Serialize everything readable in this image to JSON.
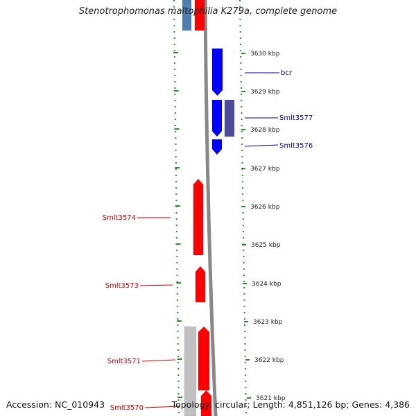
{
  "title": "Stenotrophomonas maltophilia K279a, complete genome",
  "footer": {
    "accession": "Accession: NC_010943",
    "topology": "Topology: circular; Length: 4,851,126 bp; Genes: 4,386"
  },
  "scale": {
    "ticks": [
      "3630 kbp",
      "3629 kbp",
      "3628 kbp",
      "3627 kbp",
      "3626 kbp",
      "3625 kbp",
      "3624 kbp",
      "3623 kbp",
      "3622 kbp",
      "3621 kbp"
    ]
  },
  "colors": {
    "backbone": "#888888",
    "scale_dots": "#2e8b2e",
    "reverse_gene": "#0000ff",
    "reverse_other": "#4b4b9a",
    "forward_gene": "#ff0000",
    "forward_other": "#c0c0c0",
    "edge_blue": "#4f7fb0",
    "reverse_label": "#00008b",
    "forward_label": "#cc0000"
  },
  "genes": [
    {
      "label": "bcr",
      "strand": "reverse"
    },
    {
      "label": "Smlt3577",
      "strand": "reverse"
    },
    {
      "label": "Smlt3576",
      "strand": "reverse"
    },
    {
      "label": "Smlt3574",
      "strand": "forward"
    },
    {
      "label": "Smlt3573",
      "strand": "forward"
    },
    {
      "label": "Smlt3571",
      "strand": "forward"
    },
    {
      "label": "Smlt3570",
      "strand": "forward"
    }
  ]
}
